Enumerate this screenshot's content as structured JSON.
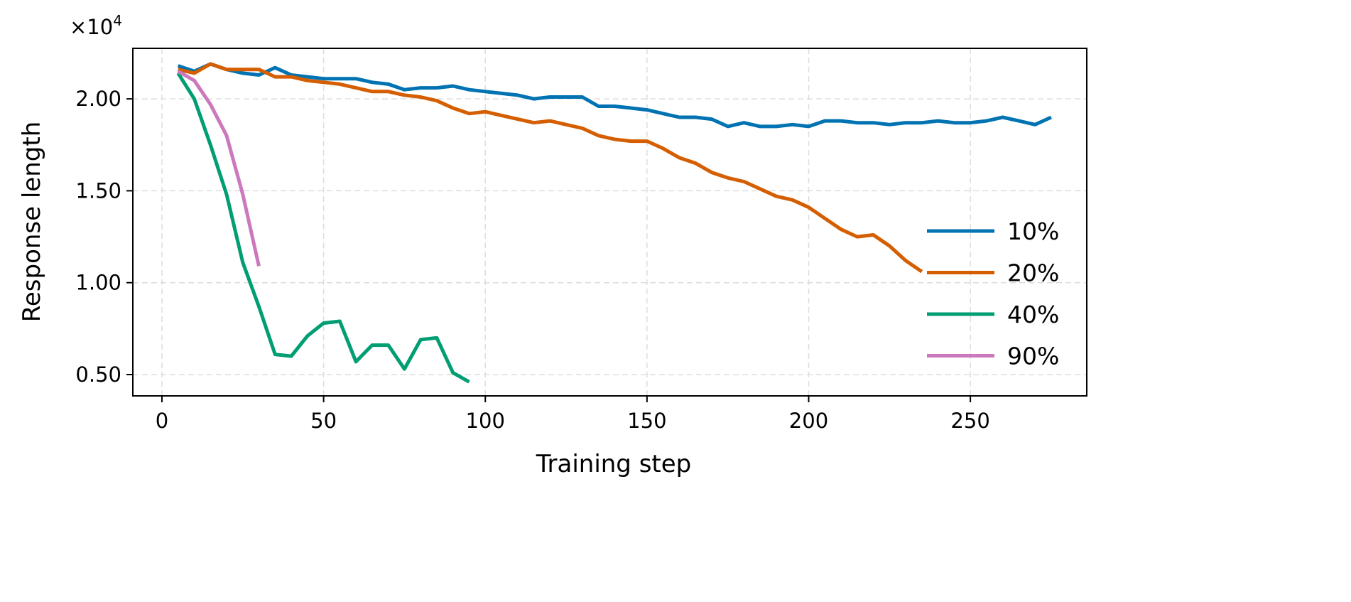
{
  "chart_data": {
    "type": "line",
    "title": "",
    "xlabel": "Training step",
    "ylabel": "Response length",
    "y_multiplier": "×10",
    "y_multiplier_exp": "4",
    "xlim": [
      -9,
      286
    ],
    "ylim": [
      0.384,
      2.275
    ],
    "xticks": [
      0,
      50,
      100,
      150,
      200,
      250
    ],
    "xtick_labels": [
      "0",
      "50",
      "100",
      "150",
      "200",
      "250"
    ],
    "yticks": [
      0.5,
      1.0,
      1.5,
      2.0
    ],
    "ytick_labels": [
      "0.50",
      "1.00",
      "1.50",
      "2.00"
    ],
    "grid": true,
    "legend_placement": "right",
    "series": [
      {
        "name": "10%",
        "color": "#0173B2",
        "x": [
          5,
          10,
          15,
          20,
          25,
          30,
          35,
          40,
          45,
          50,
          55,
          60,
          65,
          70,
          75,
          80,
          85,
          90,
          95,
          100,
          105,
          110,
          115,
          120,
          125,
          130,
          135,
          140,
          145,
          150,
          155,
          160,
          165,
          170,
          175,
          180,
          185,
          190,
          195,
          200,
          205,
          210,
          215,
          220,
          225,
          230,
          235,
          240,
          245,
          250,
          255,
          260,
          265,
          270,
          275
        ],
        "y": [
          2.18,
          2.15,
          2.19,
          2.16,
          2.14,
          2.13,
          2.17,
          2.13,
          2.12,
          2.11,
          2.11,
          2.11,
          2.09,
          2.08,
          2.05,
          2.06,
          2.06,
          2.07,
          2.05,
          2.04,
          2.03,
          2.02,
          2.0,
          2.01,
          2.01,
          2.01,
          1.96,
          1.96,
          1.95,
          1.94,
          1.92,
          1.9,
          1.9,
          1.89,
          1.85,
          1.87,
          1.85,
          1.85,
          1.86,
          1.85,
          1.88,
          1.88,
          1.87,
          1.87,
          1.86,
          1.87,
          1.87,
          1.88,
          1.87,
          1.87,
          1.88,
          1.9,
          1.88,
          1.86,
          1.9
        ]
      },
      {
        "name": "20%",
        "color": "#D55E00",
        "x": [
          5,
          10,
          15,
          20,
          25,
          30,
          35,
          40,
          45,
          50,
          55,
          60,
          65,
          70,
          75,
          80,
          85,
          90,
          95,
          100,
          105,
          110,
          115,
          120,
          125,
          130,
          135,
          140,
          145,
          150,
          155,
          160,
          165,
          170,
          175,
          180,
          185,
          190,
          195,
          200,
          205,
          210,
          215,
          220,
          225,
          230,
          235
        ],
        "y": [
          2.16,
          2.14,
          2.19,
          2.16,
          2.16,
          2.16,
          2.12,
          2.12,
          2.1,
          2.09,
          2.08,
          2.06,
          2.04,
          2.04,
          2.02,
          2.01,
          1.99,
          1.95,
          1.92,
          1.93,
          1.91,
          1.89,
          1.87,
          1.88,
          1.86,
          1.84,
          1.8,
          1.78,
          1.77,
          1.77,
          1.73,
          1.68,
          1.65,
          1.6,
          1.57,
          1.55,
          1.51,
          1.47,
          1.45,
          1.41,
          1.35,
          1.29,
          1.25,
          1.26,
          1.2,
          1.12,
          1.06
        ]
      },
      {
        "name": "40%",
        "color": "#029E73",
        "x": [
          5,
          10,
          15,
          20,
          25,
          30,
          35,
          40,
          45,
          50,
          55,
          60,
          65,
          70,
          75,
          80,
          85,
          90,
          95
        ],
        "y": [
          2.14,
          2.0,
          1.75,
          1.48,
          1.11,
          0.87,
          0.61,
          0.6,
          0.71,
          0.78,
          0.79,
          0.57,
          0.66,
          0.66,
          0.53,
          0.69,
          0.7,
          0.51,
          0.46
        ]
      },
      {
        "name": "90%",
        "color": "#CC78BC",
        "x": [
          5,
          10,
          15,
          20,
          25,
          30
        ],
        "y": [
          2.15,
          2.1,
          1.97,
          1.8,
          1.48,
          1.09
        ]
      }
    ]
  }
}
